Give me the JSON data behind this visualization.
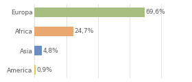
{
  "categories": [
    "America",
    "Asia",
    "Africa",
    "Europa"
  ],
  "values": [
    0.9,
    4.8,
    24.7,
    69.6
  ],
  "labels": [
    "0,9%",
    "4,8%",
    "24,7%",
    "69,6%"
  ],
  "bar_colors": [
    "#e8c84a",
    "#6b8dc4",
    "#e8a870",
    "#a8be80"
  ],
  "background_color": "#ffffff",
  "xlim": [
    0,
    85
  ],
  "label_fontsize": 6.5,
  "tick_fontsize": 6.5,
  "grid_color": "#d8d8d8",
  "text_color": "#555555"
}
